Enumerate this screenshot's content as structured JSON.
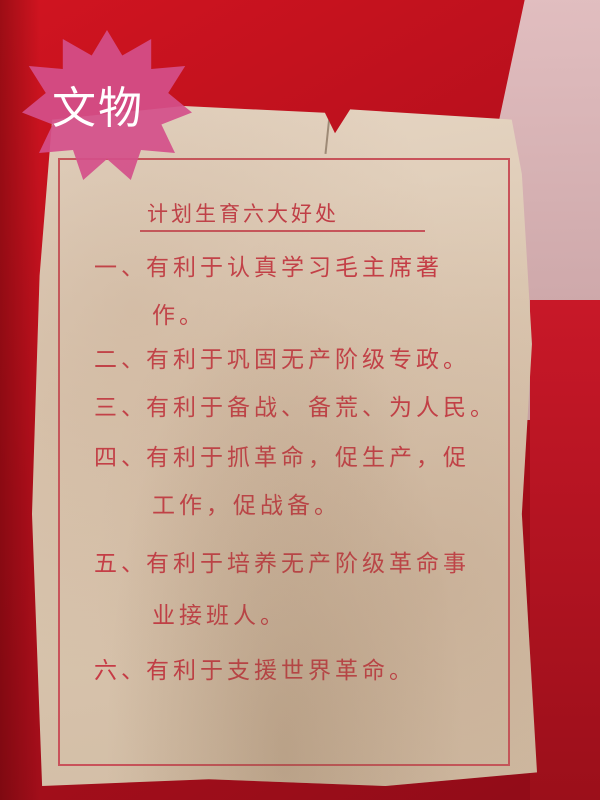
{
  "watermark": {
    "text": "文物",
    "color": "#d44f8a"
  },
  "poster": {
    "title": "计划生育六大好处",
    "text_color": "#c73a45",
    "paper_color": "#e0cfbb",
    "items": [
      {
        "number": "一、",
        "line1": "有利于认真学习毛主席著",
        "line2": "作。"
      },
      {
        "number": "二、",
        "line1": "有利于巩固无产阶级专政。"
      },
      {
        "number": "三、",
        "line1": "有利于备战、备荒、为人民。"
      },
      {
        "number": "四、",
        "line1": "有利于抓革命，促生产，促",
        "line2": "工作，促战备。"
      },
      {
        "number": "五、",
        "line1": "有利于培养无产阶级革命事",
        "line2": "业接班人。"
      },
      {
        "number": "六、",
        "line1": "有利于支援世界革命。"
      }
    ]
  }
}
